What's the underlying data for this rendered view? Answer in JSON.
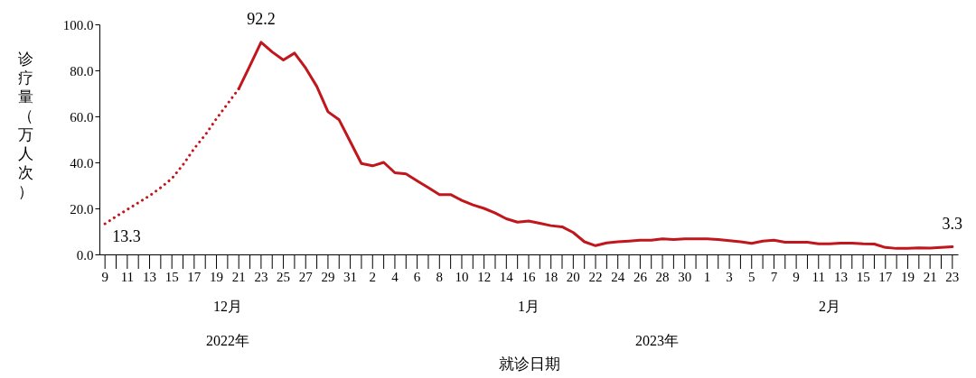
{
  "chart_data": {
    "type": "line",
    "xlabel": "就诊日期",
    "ylabel": "诊疗量（万人次）",
    "xlim": [
      "2022-12-08T12:00",
      "2023-02-23T12:00"
    ],
    "ylim": [
      0,
      100
    ],
    "yticks": [
      {
        "value": 0,
        "label": "0.0"
      },
      {
        "value": 20,
        "label": "20.0"
      },
      {
        "value": 40,
        "label": "40.0"
      },
      {
        "value": 60,
        "label": "60.0"
      },
      {
        "value": 80,
        "label": "80.0"
      },
      {
        "value": 100,
        "label": "100.0"
      }
    ],
    "xticks": [
      {
        "value": "2022-12-09",
        "label": "9"
      },
      {
        "value": "2022-12-10",
        "label": null
      },
      {
        "value": "2022-12-11",
        "label": "11"
      },
      {
        "value": "2022-12-12",
        "label": null
      },
      {
        "value": "2022-12-13",
        "label": "13"
      },
      {
        "value": "2022-12-14",
        "label": null
      },
      {
        "value": "2022-12-15",
        "label": "15"
      },
      {
        "value": "2022-12-16",
        "label": null
      },
      {
        "value": "2022-12-17",
        "label": "17"
      },
      {
        "value": "2022-12-18",
        "label": null
      },
      {
        "value": "2022-12-19",
        "label": "19"
      },
      {
        "value": "2022-12-20",
        "label": null
      },
      {
        "value": "2022-12-21",
        "label": "21"
      },
      {
        "value": "2022-12-22",
        "label": null
      },
      {
        "value": "2022-12-23",
        "label": "23"
      },
      {
        "value": "2022-12-24",
        "label": null
      },
      {
        "value": "2022-12-25",
        "label": "25"
      },
      {
        "value": "2022-12-26",
        "label": null
      },
      {
        "value": "2022-12-27",
        "label": "27"
      },
      {
        "value": "2022-12-28",
        "label": null
      },
      {
        "value": "2022-12-29",
        "label": "29"
      },
      {
        "value": "2022-12-30",
        "label": null
      },
      {
        "value": "2022-12-31",
        "label": "31"
      },
      {
        "value": "2023-01-01",
        "label": null
      },
      {
        "value": "2023-01-02",
        "label": "2"
      },
      {
        "value": "2023-01-03",
        "label": null
      },
      {
        "value": "2023-01-04",
        "label": "4"
      },
      {
        "value": "2023-01-05",
        "label": null
      },
      {
        "value": "2023-01-06",
        "label": "6"
      },
      {
        "value": "2023-01-07",
        "label": null
      },
      {
        "value": "2023-01-08",
        "label": "8"
      },
      {
        "value": "2023-01-09",
        "label": null
      },
      {
        "value": "2023-01-10",
        "label": "10"
      },
      {
        "value": "2023-01-11",
        "label": null
      },
      {
        "value": "2023-01-12",
        "label": "12"
      },
      {
        "value": "2023-01-13",
        "label": null
      },
      {
        "value": "2023-01-14",
        "label": "14"
      },
      {
        "value": "2023-01-15",
        "label": null
      },
      {
        "value": "2023-01-16",
        "label": "16"
      },
      {
        "value": "2023-01-17",
        "label": null
      },
      {
        "value": "2023-01-18",
        "label": "18"
      },
      {
        "value": "2023-01-19",
        "label": null
      },
      {
        "value": "2023-01-20",
        "label": "20"
      },
      {
        "value": "2023-01-21",
        "label": null
      },
      {
        "value": "2023-01-22",
        "label": "22"
      },
      {
        "value": "2023-01-23",
        "label": null
      },
      {
        "value": "2023-01-24",
        "label": "24"
      },
      {
        "value": "2023-01-25",
        "label": null
      },
      {
        "value": "2023-01-26",
        "label": "26"
      },
      {
        "value": "2023-01-27",
        "label": null
      },
      {
        "value": "2023-01-28",
        "label": "28"
      },
      {
        "value": "2023-01-29",
        "label": null
      },
      {
        "value": "2023-01-30",
        "label": "30"
      },
      {
        "value": "2023-01-31",
        "label": null
      },
      {
        "value": "2023-02-01",
        "label": "1"
      },
      {
        "value": "2023-02-02",
        "label": null
      },
      {
        "value": "2023-02-03",
        "label": "3"
      },
      {
        "value": "2023-02-04",
        "label": null
      },
      {
        "value": "2023-02-05",
        "label": "5"
      },
      {
        "value": "2023-02-06",
        "label": null
      },
      {
        "value": "2023-02-07",
        "label": "7"
      },
      {
        "value": "2023-02-08",
        "label": null
      },
      {
        "value": "2023-02-09",
        "label": "9"
      },
      {
        "value": "2023-02-10",
        "label": null
      },
      {
        "value": "2023-02-11",
        "label": "11"
      },
      {
        "value": "2023-02-12",
        "label": null
      },
      {
        "value": "2023-02-13",
        "label": "13"
      },
      {
        "value": "2023-02-14",
        "label": null
      },
      {
        "value": "2023-02-15",
        "label": "15"
      },
      {
        "value": "2023-02-16",
        "label": null
      },
      {
        "value": "2023-02-17",
        "label": "17"
      },
      {
        "value": "2023-02-18",
        "label": null
      },
      {
        "value": "2023-02-19",
        "label": "19"
      },
      {
        "value": "2023-02-20",
        "label": null
      },
      {
        "value": "2023-02-21",
        "label": "21"
      },
      {
        "value": "2023-02-22",
        "label": null
      },
      {
        "value": "2023-02-23",
        "label": "23"
      }
    ],
    "series": [
      {
        "color": "#c0161c",
        "line_style": "dotted",
        "x": [
          "2022-12-09",
          "2022-12-10",
          "2022-12-11",
          "2022-12-12",
          "2022-12-13",
          "2022-12-14",
          "2022-12-15",
          "2022-12-16",
          "2022-12-17",
          "2022-12-18",
          "2022-12-19",
          "2022-12-20",
          "2022-12-21"
        ],
        "values": [
          13.3,
          16.5,
          19.5,
          22.5,
          25.5,
          29,
          33,
          39,
          46,
          52,
          59,
          65.5,
          72
        ]
      },
      {
        "color": "#c0161c",
        "line_style": "solid",
        "x": [
          "2022-12-21",
          "2022-12-22",
          "2022-12-23",
          "2022-12-24",
          "2022-12-25",
          "2022-12-26",
          "2022-12-27",
          "2022-12-28",
          "2022-12-29",
          "2022-12-30",
          "2022-12-31",
          "2023-01-01",
          "2023-01-02",
          "2023-01-03",
          "2023-01-04",
          "2023-01-05",
          "2023-01-06",
          "2023-01-07",
          "2023-01-08",
          "2023-01-09",
          "2023-01-10",
          "2023-01-11",
          "2023-01-12",
          "2023-01-13",
          "2023-01-14",
          "2023-01-15",
          "2023-01-16",
          "2023-01-17",
          "2023-01-18",
          "2023-01-19",
          "2023-01-20",
          "2023-01-21",
          "2023-01-22",
          "2023-01-23",
          "2023-01-24",
          "2023-01-25",
          "2023-01-26",
          "2023-01-27",
          "2023-01-28",
          "2023-01-29",
          "2023-01-30",
          "2023-01-31",
          "2023-02-01",
          "2023-02-02",
          "2023-02-03",
          "2023-02-04",
          "2023-02-05",
          "2023-02-06",
          "2023-02-07",
          "2023-02-08",
          "2023-02-09",
          "2023-02-10",
          "2023-02-11",
          "2023-02-12",
          "2023-02-13",
          "2023-02-14",
          "2023-02-15",
          "2023-02-16",
          "2023-02-17",
          "2023-02-18",
          "2023-02-19",
          "2023-02-20",
          "2023-02-21",
          "2023-02-22",
          "2023-02-23"
        ],
        "values": [
          72,
          82,
          92.2,
          88,
          84.5,
          87.5,
          81,
          73,
          62,
          58.5,
          49,
          39.5,
          38.5,
          40,
          35.5,
          35,
          32,
          29,
          26,
          26,
          23.5,
          21.5,
          20,
          18,
          15.5,
          14,
          14.5,
          13.5,
          12.5,
          12,
          9.5,
          5.5,
          3.8,
          5,
          5.5,
          5.8,
          6.2,
          6.2,
          6.8,
          6.5,
          6.8,
          6.8,
          6.8,
          6.5,
          6,
          5.5,
          4.8,
          5.8,
          6.2,
          5.3,
          5.3,
          5.3,
          4.6,
          4.6,
          4.9,
          4.9,
          4.6,
          4.5,
          3,
          2.6,
          2.6,
          2.8,
          2.7,
          3,
          3.3
        ]
      }
    ],
    "annotations": [
      {
        "text": "92.2",
        "x": "2022-12-23",
        "y": 92.2
      },
      {
        "text": "13.3",
        "x": "2022-12-09",
        "y": 13.3
      },
      {
        "text": "3.3",
        "x": "2023-02-23",
        "y": 3.3
      },
      "12月",
      "1月",
      "2月",
      "2022年",
      "2023年"
    ],
    "grid": false,
    "marker": "none"
  }
}
